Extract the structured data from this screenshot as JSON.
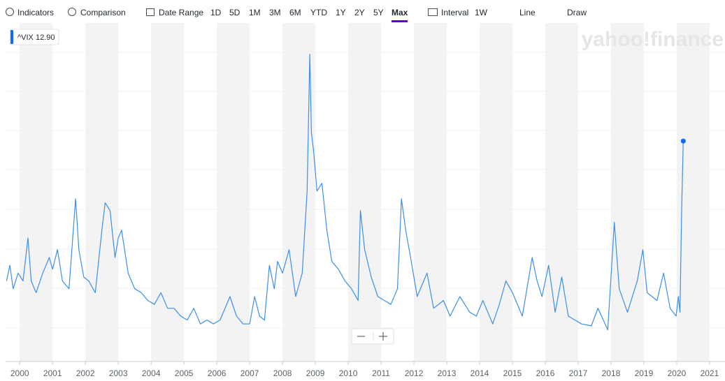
{
  "toolbar": {
    "indicators": "Indicators",
    "comparison": "Comparison",
    "date_range": "Date Range",
    "ranges": [
      "1D",
      "5D",
      "1M",
      "3M",
      "6M",
      "YTD",
      "1Y",
      "2Y",
      "5Y",
      "Max"
    ],
    "interval": "Interval",
    "interval_value": "1W",
    "chart_type": "Line",
    "draw": "Draw"
  },
  "watermark": "yahoo!finance",
  "chart_data": {
    "type": "line",
    "legend_label": "^VIX 12.90",
    "xlim": [
      1999.57,
      2021.47
    ],
    "ylim": [
      1.4,
      88
    ],
    "xticks": [
      2000,
      2001,
      2002,
      2003,
      2004,
      2005,
      2006,
      2007,
      2008,
      2009,
      2010,
      2011,
      2012,
      2013,
      2014,
      2015,
      2016,
      2017,
      2018,
      2019,
      2020,
      2021
    ],
    "series": [
      {
        "name": "^VIX",
        "color": "#3d8fe6",
        "x": [
          1999.6,
          1999.7,
          1999.8,
          1999.95,
          2000.1,
          2000.25,
          2000.35,
          2000.5,
          2000.7,
          2000.9,
          2001.0,
          2001.15,
          2001.3,
          2001.5,
          2001.7,
          2001.8,
          2001.95,
          2002.1,
          2002.3,
          2002.5,
          2002.6,
          2002.75,
          2002.9,
          2003.0,
          2003.1,
          2003.3,
          2003.5,
          2003.7,
          2003.9,
          2004.1,
          2004.3,
          2004.5,
          2004.7,
          2004.9,
          2005.1,
          2005.3,
          2005.5,
          2005.7,
          2005.9,
          2006.1,
          2006.4,
          2006.6,
          2006.8,
          2007.0,
          2007.15,
          2007.3,
          2007.45,
          2007.6,
          2007.75,
          2007.85,
          2008.0,
          2008.2,
          2008.4,
          2008.6,
          2008.75,
          2008.83,
          2008.88,
          2008.95,
          2009.05,
          2009.2,
          2009.35,
          2009.5,
          2009.7,
          2009.9,
          2010.1,
          2010.3,
          2010.37,
          2010.5,
          2010.7,
          2010.9,
          2011.1,
          2011.3,
          2011.5,
          2011.62,
          2011.75,
          2011.9,
          2012.1,
          2012.4,
          2012.6,
          2012.9,
          2013.1,
          2013.4,
          2013.7,
          2013.9,
          2014.1,
          2014.4,
          2014.6,
          2014.8,
          2015.0,
          2015.3,
          2015.6,
          2015.75,
          2015.9,
          2016.1,
          2016.3,
          2016.5,
          2016.7,
          2016.9,
          2017.1,
          2017.4,
          2017.6,
          2017.9,
          2018.1,
          2018.25,
          2018.5,
          2018.8,
          2018.97,
          2019.1,
          2019.4,
          2019.6,
          2019.8,
          2019.98,
          2020.05,
          2020.1,
          2020.15,
          2020.2
        ],
        "values": [
          22,
          26,
          20,
          24,
          22,
          33,
          22,
          19,
          24,
          28,
          25,
          30,
          22,
          20,
          43,
          30,
          23,
          22,
          19,
          35,
          42,
          40,
          28,
          33,
          35,
          24,
          20,
          19,
          17,
          16,
          19,
          15,
          15,
          13,
          12,
          15,
          11,
          12,
          11,
          12,
          18,
          13,
          11,
          11,
          18,
          13,
          12,
          26,
          20,
          27,
          24,
          30,
          18,
          24,
          45,
          80,
          60,
          55,
          45,
          47,
          35,
          27,
          25,
          22,
          20,
          17,
          40,
          30,
          23,
          18,
          17,
          16,
          20,
          43,
          35,
          28,
          18,
          24,
          15,
          17,
          13,
          18,
          14,
          13,
          17,
          11,
          16,
          22,
          19,
          13,
          28,
          22,
          18,
          26,
          14,
          23,
          13,
          12,
          11,
          10.5,
          15,
          9.5,
          37,
          20,
          14,
          22,
          30,
          19,
          17,
          24,
          15,
          13,
          18,
          14,
          40,
          57.8
        ]
      }
    ]
  }
}
